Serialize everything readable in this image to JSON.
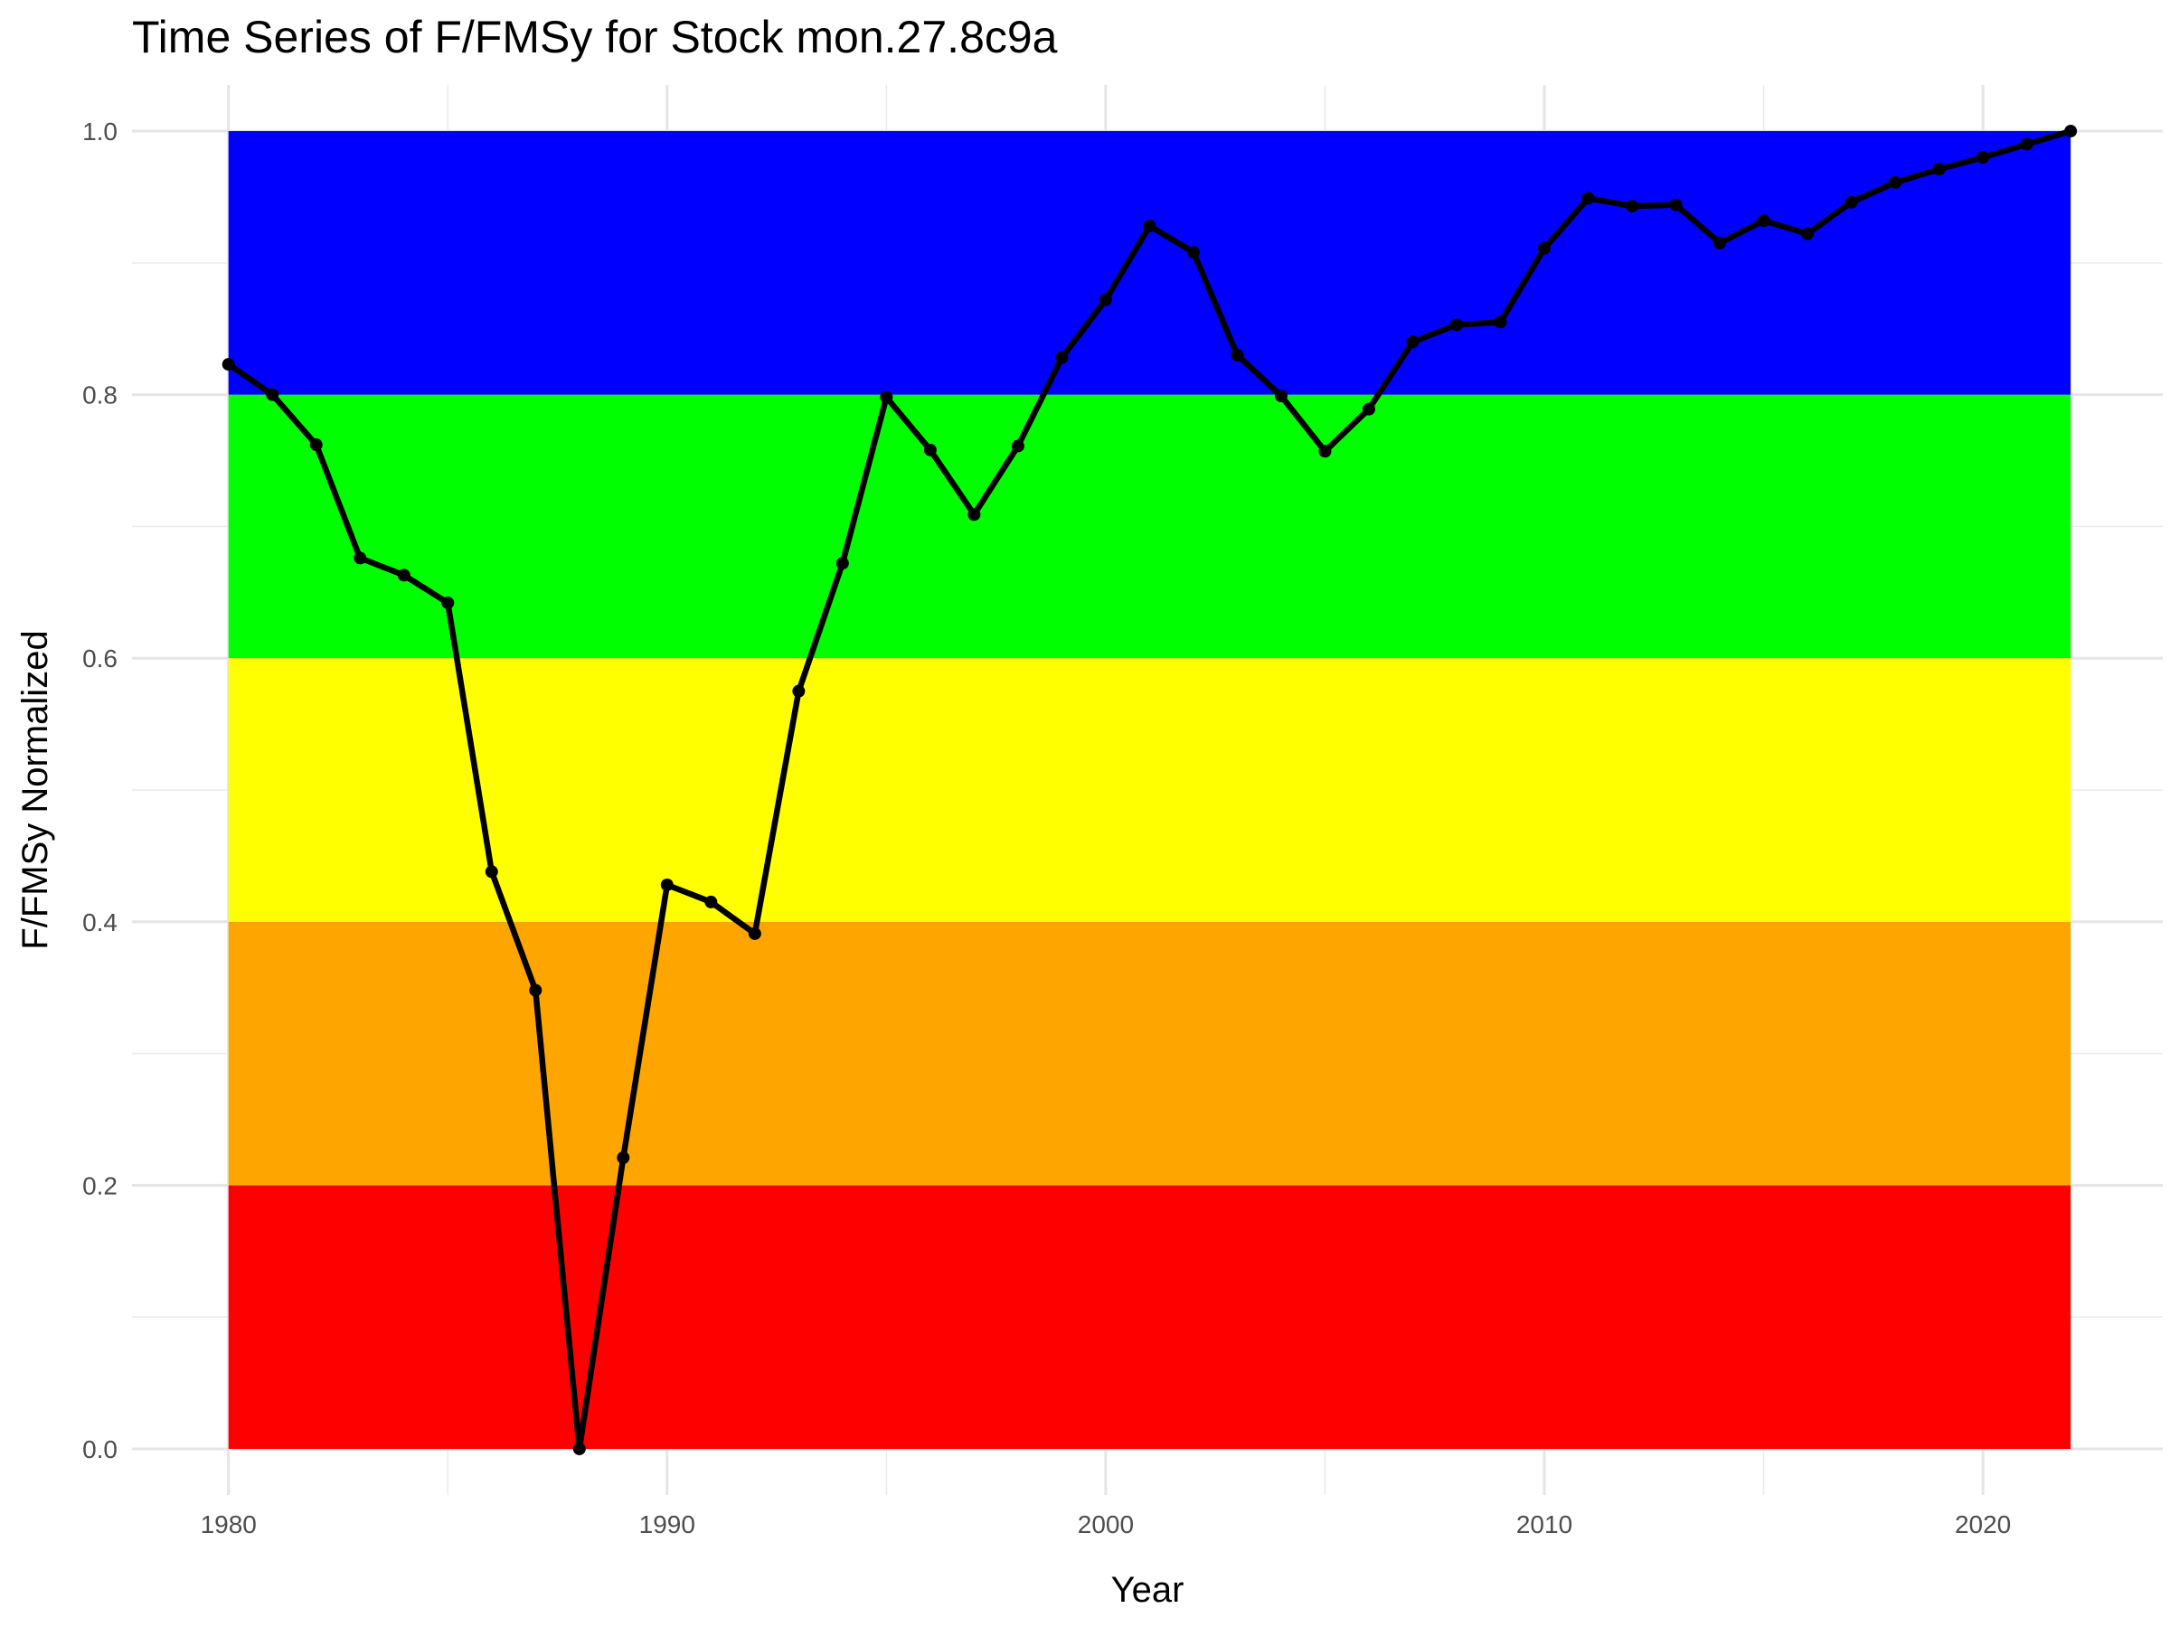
{
  "chart_data": {
    "type": "line",
    "title": "Time Series of F/FMSy for Stock mon.27.8c9a",
    "xlabel": "Year",
    "ylabel": "F/FMSy Normalized",
    "xlim": [
      1977.8,
      2024.1
    ],
    "ylim": [
      -0.035,
      1.035
    ],
    "x_ticks": [
      1980,
      1990,
      2000,
      2010,
      2020
    ],
    "y_ticks": [
      0.0,
      0.2,
      0.4,
      0.6,
      0.8,
      1.0
    ],
    "y_tick_labels": [
      "0.0",
      "0.2",
      "0.4",
      "0.6",
      "0.8",
      "1.0"
    ],
    "grid": true,
    "bands": [
      {
        "ymin": 0.0,
        "ymax": 0.2,
        "color": "#ff0000"
      },
      {
        "ymin": 0.2,
        "ymax": 0.4,
        "color": "#ffa500"
      },
      {
        "ymin": 0.4,
        "ymax": 0.6,
        "color": "#ffff00"
      },
      {
        "ymin": 0.6,
        "ymax": 0.8,
        "color": "#00ff00"
      },
      {
        "ymin": 0.8,
        "ymax": 1.0,
        "color": "#0000ff"
      }
    ],
    "series": [
      {
        "color": "#000000",
        "x": [
          1980,
          1981,
          1982,
          1983,
          1984,
          1985,
          1986,
          1987,
          1988,
          1989,
          1990,
          1991,
          1992,
          1993,
          1994,
          1995,
          1996,
          1997,
          1998,
          1999,
          2000,
          2001,
          2002,
          2003,
          2004,
          2005,
          2006,
          2007,
          2008,
          2009,
          2010,
          2011,
          2012,
          2013,
          2014,
          2015,
          2016,
          2017,
          2018,
          2019,
          2020,
          2021,
          2022
        ],
        "y": [
          0.823,
          0.8,
          0.762,
          0.676,
          0.663,
          0.642,
          0.438,
          0.348,
          0.0,
          0.221,
          0.428,
          0.415,
          0.391,
          0.575,
          0.672,
          0.798,
          0.758,
          0.709,
          0.761,
          0.828,
          0.872,
          0.928,
          0.908,
          0.83,
          0.799,
          0.757,
          0.789,
          0.84,
          0.853,
          0.855,
          0.911,
          0.949,
          0.943,
          0.944,
          0.915,
          0.932,
          0.922,
          0.946,
          0.961,
          0.971,
          0.98,
          0.99,
          1.0
        ]
      }
    ]
  }
}
